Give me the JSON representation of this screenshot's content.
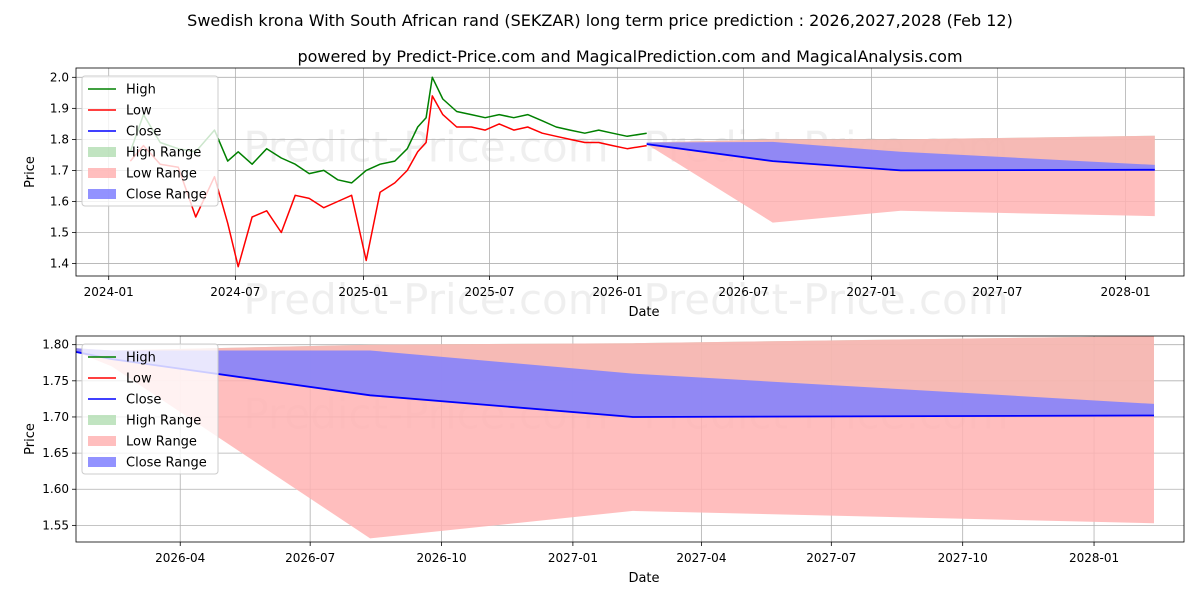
{
  "title": "Swedish krona With South African rand (SEKZAR) long term price prediction : 2026,2027,2028 (Feb 12)",
  "subtitle": "powered by Predict-Price.com and MagicalPrediction.com and MagicalAnalysis.com",
  "watermark": "Predict-Price.com",
  "colors": {
    "high": "#008000",
    "low": "#ff0000",
    "close": "#0000ff",
    "high_range": "#a6d8a6",
    "low_range": "#ffb3b3",
    "close_range": "#7f7fff"
  },
  "chart_data": [
    {
      "type": "line",
      "xlabel": "Date",
      "ylabel": "Price",
      "ylim": [
        1.36,
        2.03
      ],
      "xlim": [
        "2023-11-15",
        "2028-03-25"
      ],
      "yticks": [
        "1.4",
        "1.5",
        "1.6",
        "1.7",
        "1.8",
        "1.9",
        "2.0"
      ],
      "yticks_values": [
        1.4,
        1.5,
        1.6,
        1.7,
        1.8,
        1.9,
        2.0
      ],
      "xticks": [
        "2024-01",
        "2024-07",
        "2025-01",
        "2025-07",
        "2026-01",
        "2026-07",
        "2027-01",
        "2027-07",
        "2028-01"
      ],
      "xticks_dates": [
        "2024-01-01",
        "2024-07-01",
        "2025-01-01",
        "2025-07-01",
        "2026-01-01",
        "2026-07-01",
        "2027-01-01",
        "2027-07-01",
        "2028-01-01"
      ],
      "legend": [
        "High",
        "Low",
        "Close",
        "High Range",
        "Low Range",
        "Close Range"
      ],
      "legend_location": "upper-left",
      "grid": true,
      "series": [
        {
          "name": "High",
          "x": [
            "2024-02-01",
            "2024-02-20",
            "2024-03-15",
            "2024-04-10",
            "2024-05-05",
            "2024-06-01",
            "2024-06-20",
            "2024-07-05",
            "2024-07-25",
            "2024-08-15",
            "2024-09-05",
            "2024-09-25",
            "2024-10-15",
            "2024-11-05",
            "2024-11-25",
            "2024-12-15",
            "2025-01-05",
            "2025-01-25",
            "2025-02-15",
            "2025-03-05",
            "2025-03-20",
            "2025-04-01",
            "2025-04-10",
            "2025-04-25",
            "2025-05-15",
            "2025-06-05",
            "2025-06-25",
            "2025-07-15",
            "2025-08-05",
            "2025-08-25",
            "2025-09-15",
            "2025-10-05",
            "2025-10-25",
            "2025-11-15",
            "2025-12-05",
            "2025-12-25",
            "2026-01-15",
            "2026-02-12"
          ],
          "values": [
            1.76,
            1.88,
            1.79,
            1.77,
            1.76,
            1.83,
            1.73,
            1.76,
            1.72,
            1.77,
            1.74,
            1.72,
            1.69,
            1.7,
            1.67,
            1.66,
            1.7,
            1.72,
            1.73,
            1.77,
            1.84,
            1.87,
            2.0,
            1.93,
            1.89,
            1.88,
            1.87,
            1.88,
            1.87,
            1.88,
            1.86,
            1.84,
            1.83,
            1.82,
            1.83,
            1.82,
            1.81,
            1.82
          ]
        },
        {
          "name": "Low",
          "x": [
            "2024-02-01",
            "2024-02-20",
            "2024-03-15",
            "2024-04-10",
            "2024-05-05",
            "2024-06-01",
            "2024-06-20",
            "2024-07-05",
            "2024-07-25",
            "2024-08-15",
            "2024-09-05",
            "2024-09-25",
            "2024-10-15",
            "2024-11-05",
            "2024-11-25",
            "2024-12-15",
            "2025-01-05",
            "2025-01-25",
            "2025-02-15",
            "2025-03-05",
            "2025-03-20",
            "2025-04-01",
            "2025-04-10",
            "2025-04-25",
            "2025-05-15",
            "2025-06-05",
            "2025-06-25",
            "2025-07-15",
            "2025-08-05",
            "2025-08-25",
            "2025-09-15",
            "2025-10-05",
            "2025-10-25",
            "2025-11-15",
            "2025-12-05",
            "2025-12-25",
            "2026-01-15",
            "2026-02-12"
          ],
          "values": [
            1.73,
            1.78,
            1.72,
            1.71,
            1.55,
            1.68,
            1.53,
            1.39,
            1.55,
            1.57,
            1.5,
            1.62,
            1.61,
            1.58,
            1.6,
            1.62,
            1.41,
            1.63,
            1.66,
            1.7,
            1.76,
            1.79,
            1.94,
            1.88,
            1.84,
            1.84,
            1.83,
            1.85,
            1.83,
            1.84,
            1.82,
            1.81,
            1.8,
            1.79,
            1.79,
            1.78,
            1.77,
            1.78
          ]
        },
        {
          "name": "Close",
          "x": [
            "2026-02-12",
            "2026-08-12",
            "2027-02-12",
            "2028-02-12"
          ],
          "values": [
            1.785,
            1.73,
            1.7,
            1.702
          ]
        },
        {
          "name": "High Range",
          "x": [
            "2026-02-12",
            "2026-08-12",
            "2027-02-12",
            "2028-02-12"
          ],
          "lower": [
            1.785,
            1.73,
            1.7,
            1.702
          ],
          "upper": [
            1.79,
            1.8,
            1.8,
            1.812
          ]
        },
        {
          "name": "Low Range",
          "x": [
            "2026-02-12",
            "2026-08-12",
            "2027-02-12",
            "2028-02-12"
          ],
          "lower": [
            1.785,
            1.532,
            1.57,
            1.553
          ],
          "upper": [
            1.79,
            1.8,
            1.8,
            1.812
          ]
        },
        {
          "name": "Close Range",
          "x": [
            "2026-02-12",
            "2026-08-12",
            "2027-02-12",
            "2028-02-12"
          ],
          "lower": [
            1.785,
            1.73,
            1.7,
            1.702
          ],
          "upper": [
            1.79,
            1.792,
            1.76,
            1.718
          ]
        }
      ]
    },
    {
      "type": "line",
      "xlabel": "Date",
      "ylabel": "Price",
      "ylim": [
        1.527,
        1.812
      ],
      "xlim": [
        "2026-01-18",
        "2028-03-04"
      ],
      "yticks": [
        "1.55",
        "1.60",
        "1.65",
        "1.70",
        "1.75",
        "1.80"
      ],
      "yticks_values": [
        1.55,
        1.6,
        1.65,
        1.7,
        1.75,
        1.8
      ],
      "xticks": [
        "2026-04",
        "2026-07",
        "2026-10",
        "2027-01",
        "2027-04",
        "2027-07",
        "2027-10",
        "2028-01"
      ],
      "xticks_dates": [
        "2026-04-01",
        "2026-07-01",
        "2026-10-01",
        "2027-01-01",
        "2027-04-01",
        "2027-07-01",
        "2027-10-01",
        "2028-01-01"
      ],
      "legend": [
        "High",
        "Low",
        "Close",
        "High Range",
        "Low Range",
        "Close Range"
      ],
      "legend_location": "upper-left",
      "grid": true,
      "series": [
        {
          "name": "Close",
          "x": [
            "2026-01-18",
            "2026-02-12",
            "2026-08-12",
            "2027-02-12",
            "2028-02-12"
          ],
          "values": [
            1.79,
            1.78,
            1.73,
            1.7,
            1.702
          ]
        },
        {
          "name": "High Range",
          "x": [
            "2026-01-18",
            "2026-02-12",
            "2026-08-12",
            "2027-02-12",
            "2028-02-12"
          ],
          "lower": [
            1.79,
            1.78,
            1.73,
            1.7,
            1.702
          ],
          "upper": [
            1.795,
            1.792,
            1.8,
            1.802,
            1.812
          ]
        },
        {
          "name": "Low Range",
          "x": [
            "2026-01-18",
            "2026-02-12",
            "2026-08-12",
            "2027-02-12",
            "2028-02-12"
          ],
          "lower": [
            1.79,
            1.77,
            1.532,
            1.57,
            1.553
          ],
          "upper": [
            1.795,
            1.792,
            1.8,
            1.802,
            1.812
          ]
        },
        {
          "name": "Close Range",
          "x": [
            "2026-01-18",
            "2026-02-12",
            "2026-08-12",
            "2027-02-12",
            "2028-02-12"
          ],
          "lower": [
            1.79,
            1.78,
            1.73,
            1.7,
            1.702
          ],
          "upper": [
            1.795,
            1.792,
            1.792,
            1.76,
            1.718
          ]
        }
      ]
    }
  ]
}
